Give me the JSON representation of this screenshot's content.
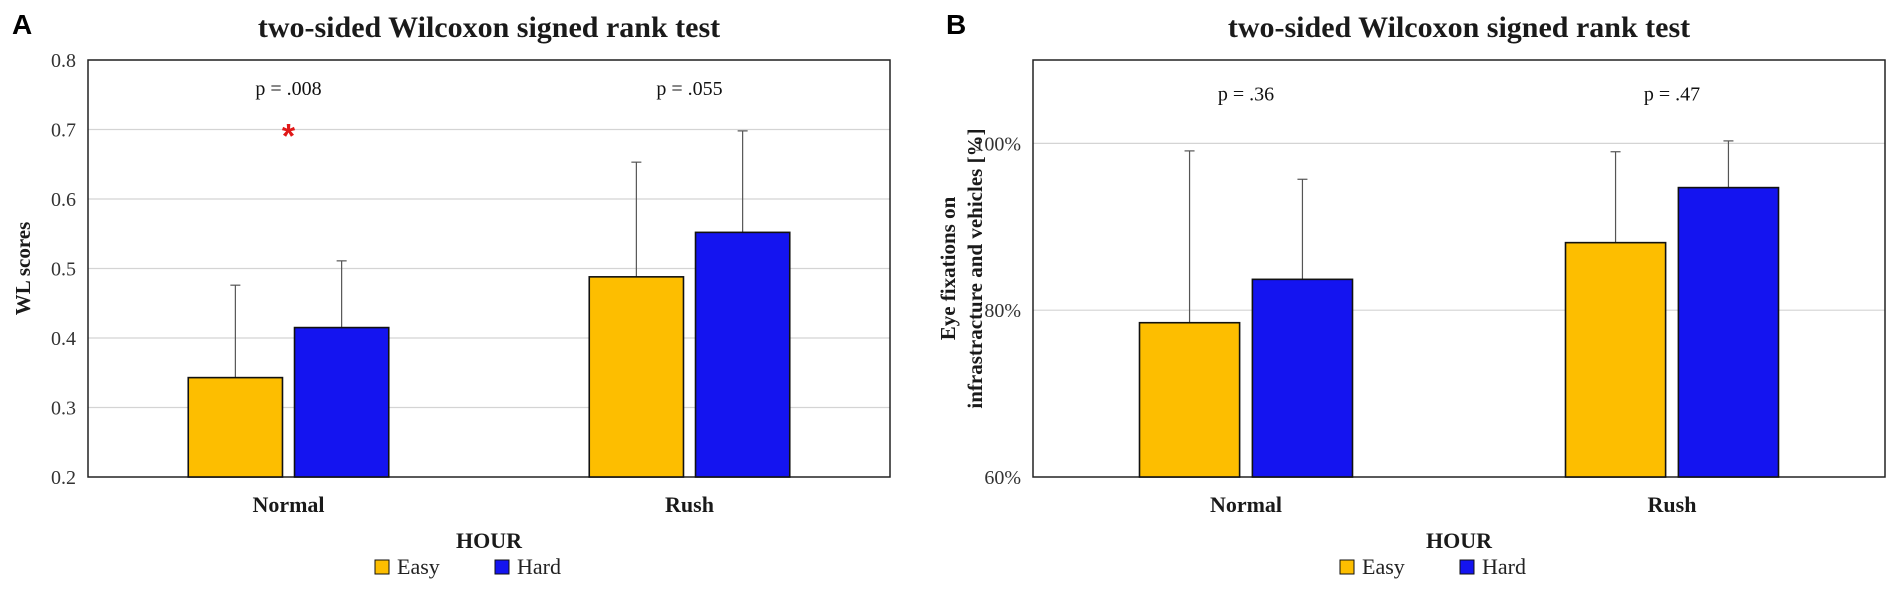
{
  "figure": {
    "panels": [
      {
        "label": "A",
        "chart_data": {
          "type": "bar",
          "title": "two-sided Wilcoxon signed rank test",
          "xlabel": "HOUR",
          "ylabel": "WL scores",
          "categories": [
            "Normal",
            "Rush"
          ],
          "series": [
            {
              "name": "Easy",
              "color": "#FDBE00",
              "values": [
                0.343,
                0.488
              ],
              "err_upper": [
                0.476,
                0.653
              ]
            },
            {
              "name": "Hard",
              "color": "#1414F0",
              "values": [
                0.415,
                0.552
              ],
              "err_upper": [
                0.511,
                0.698
              ]
            }
          ],
          "ylim": [
            0.2,
            0.8
          ],
          "yticks": [
            0.2,
            0.3,
            0.4,
            0.5,
            0.6,
            0.7,
            0.8
          ],
          "ytick_labels": [
            "0.2",
            "0.3",
            "0.4",
            "0.5",
            "0.6",
            "0.7",
            "0.8"
          ],
          "annotations": [
            {
              "category": "Normal",
              "text": "p = .008",
              "value": 0.76,
              "significant": true,
              "marker": "*",
              "marker_value": 0.7
            },
            {
              "category": "Rush",
              "text": "p = .055",
              "value": 0.76,
              "significant": false
            }
          ],
          "legend": {
            "position": "bottom-center",
            "entries": [
              "Easy",
              "Hard"
            ]
          },
          "grid": true
        }
      },
      {
        "label": "B",
        "chart_data": {
          "type": "bar",
          "title": "two-sided Wilcoxon signed rank test",
          "xlabel": "HOUR",
          "ylabel": [
            "Eye fixations on",
            "infrastracture  and vehicles [%]"
          ],
          "categories": [
            "Normal",
            "Rush"
          ],
          "series": [
            {
              "name": "Easy",
              "color": "#FDBE00",
              "values": [
                78.5,
                88.1
              ],
              "err_upper": [
                99.1,
                99.0
              ]
            },
            {
              "name": "Hard",
              "color": "#1414F0",
              "values": [
                83.7,
                94.7
              ],
              "err_upper": [
                95.7,
                100.3
              ]
            }
          ],
          "ylim": [
            60,
            110
          ],
          "yticks": [
            60,
            80,
            100
          ],
          "ytick_labels": [
            "60%",
            "80%",
            "100%"
          ],
          "annotations": [
            {
              "category": "Normal",
              "text": "p = .36",
              "value": 106,
              "significant": false
            },
            {
              "category": "Rush",
              "text": "p = .47",
              "value": 106,
              "significant": false
            }
          ],
          "legend": {
            "position": "bottom-center",
            "entries": [
              "Easy",
              "Hard"
            ]
          },
          "grid": true
        }
      }
    ]
  }
}
